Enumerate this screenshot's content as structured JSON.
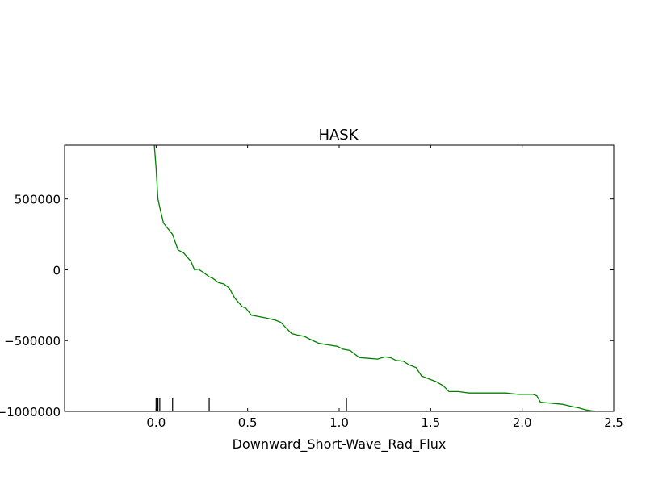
{
  "chart_data": {
    "type": "line",
    "title": "HASK",
    "xlabel": "Downward_Short-Wave_Rad_Flux",
    "ylabel": "",
    "xlim": [
      -0.5,
      2.5
    ],
    "ylim": [
      -1000000,
      880000
    ],
    "x_ticks": [
      {
        "value": 0.0,
        "label": "0.0"
      },
      {
        "value": 0.5,
        "label": "0.5"
      },
      {
        "value": 1.0,
        "label": "1.0"
      },
      {
        "value": 1.5,
        "label": "1.5"
      },
      {
        "value": 2.0,
        "label": "2.0"
      },
      {
        "value": 2.5,
        "label": "2.5"
      }
    ],
    "y_ticks": [
      {
        "value": 500000,
        "label": "500000"
      },
      {
        "value": 0,
        "label": "0"
      },
      {
        "value": -500000,
        "label": "−500000"
      },
      {
        "value": -1000000,
        "label": "−1000000"
      }
    ],
    "grid": false,
    "series": [
      {
        "color": "#008000",
        "points": [
          [
            -0.01,
            880000
          ],
          [
            0.0,
            720000
          ],
          [
            0.01,
            500000
          ],
          [
            0.02,
            440000
          ],
          [
            0.04,
            330000
          ],
          [
            0.09,
            250000
          ],
          [
            0.12,
            140000
          ],
          [
            0.15,
            120000
          ],
          [
            0.17,
            90000
          ],
          [
            0.19,
            60000
          ],
          [
            0.21,
            0
          ],
          [
            0.23,
            5000
          ],
          [
            0.26,
            -20000
          ],
          [
            0.29,
            -50000
          ],
          [
            0.31,
            -60000
          ],
          [
            0.34,
            -90000
          ],
          [
            0.37,
            -100000
          ],
          [
            0.4,
            -130000
          ],
          [
            0.43,
            -200000
          ],
          [
            0.45,
            -230000
          ],
          [
            0.47,
            -260000
          ],
          [
            0.49,
            -270000
          ],
          [
            0.52,
            -320000
          ],
          [
            0.56,
            -330000
          ],
          [
            0.6,
            -340000
          ],
          [
            0.65,
            -355000
          ],
          [
            0.68,
            -370000
          ],
          [
            0.71,
            -410000
          ],
          [
            0.74,
            -450000
          ],
          [
            0.77,
            -460000
          ],
          [
            0.81,
            -470000
          ],
          [
            0.84,
            -490000
          ],
          [
            0.89,
            -520000
          ],
          [
            0.94,
            -530000
          ],
          [
            0.99,
            -540000
          ],
          [
            1.02,
            -560000
          ],
          [
            1.06,
            -570000
          ],
          [
            1.11,
            -620000
          ],
          [
            1.16,
            -625000
          ],
          [
            1.21,
            -630000
          ],
          [
            1.25,
            -615000
          ],
          [
            1.28,
            -620000
          ],
          [
            1.31,
            -640000
          ],
          [
            1.35,
            -645000
          ],
          [
            1.38,
            -670000
          ],
          [
            1.42,
            -690000
          ],
          [
            1.45,
            -750000
          ],
          [
            1.49,
            -770000
          ],
          [
            1.53,
            -790000
          ],
          [
            1.57,
            -820000
          ],
          [
            1.6,
            -860000
          ],
          [
            1.65,
            -860000
          ],
          [
            1.71,
            -870000
          ],
          [
            1.8,
            -870000
          ],
          [
            1.91,
            -870000
          ],
          [
            1.98,
            -880000
          ],
          [
            2.06,
            -880000
          ],
          [
            2.08,
            -890000
          ],
          [
            2.1,
            -935000
          ],
          [
            2.14,
            -940000
          ],
          [
            2.18,
            -945000
          ],
          [
            2.22,
            -950000
          ],
          [
            2.27,
            -965000
          ],
          [
            2.31,
            -975000
          ],
          [
            2.35,
            -990000
          ],
          [
            2.4,
            -1000000
          ]
        ]
      }
    ],
    "rug": [
      0.0,
      0.01,
      0.02,
      0.09,
      0.29,
      1.04
    ]
  }
}
